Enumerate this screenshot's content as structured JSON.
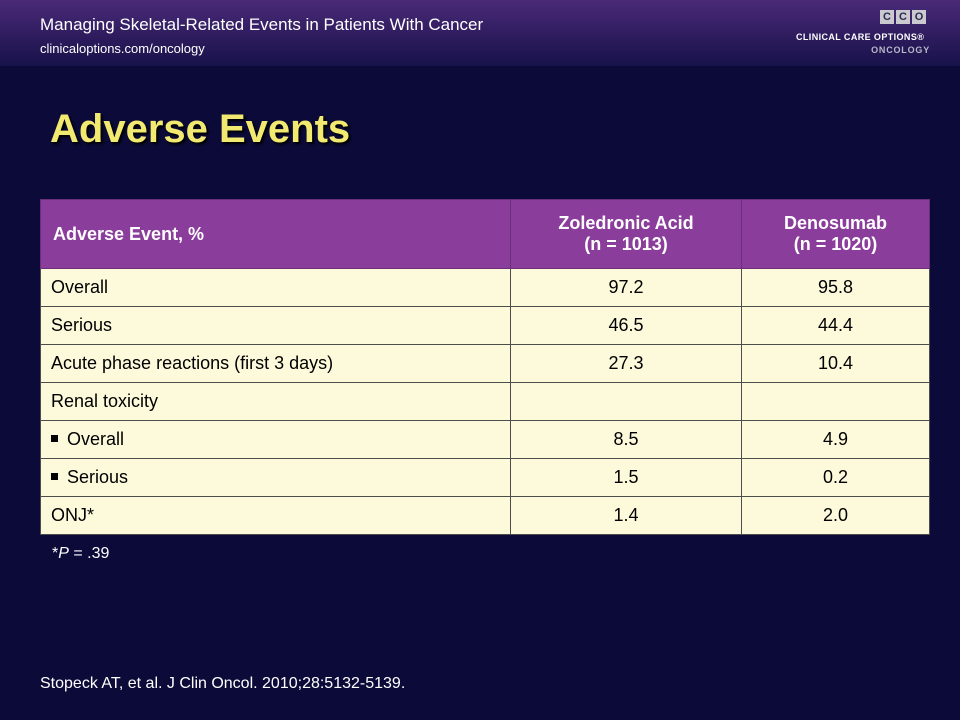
{
  "header": {
    "title": "Managing Skeletal-Related Events in Patients With Cancer",
    "url": "clinicaloptions.com/oncology"
  },
  "logo": {
    "letters": [
      "C",
      "C",
      "O"
    ],
    "line1": "CLINICAL CARE OPTIONS®",
    "line2": "ONCOLOGY"
  },
  "slide": {
    "title": "Adverse Events"
  },
  "table": {
    "columns": [
      {
        "line1": "Adverse Event, %",
        "line2": ""
      },
      {
        "line1": "Zoledronic Acid",
        "line2": "(n = 1013)"
      },
      {
        "line1": "Denosumab",
        "line2": "(n = 1020)"
      }
    ],
    "rows": [
      {
        "label": "Overall",
        "zoledronic": "97.2",
        "denosumab": "95.8"
      },
      {
        "label": "Serious",
        "zoledronic": "46.5",
        "denosumab": "44.4"
      },
      {
        "label": "Acute phase reactions (first 3 days)",
        "zoledronic": "27.3",
        "denosumab": "10.4"
      },
      {
        "label": "Renal toxicity",
        "zoledronic": "",
        "denosumab": ""
      },
      {
        "label": "Overall",
        "zoledronic": "8.5",
        "denosumab": "4.9"
      },
      {
        "label": "Serious",
        "zoledronic": "1.5",
        "denosumab": "0.2"
      },
      {
        "label": "ONJ*",
        "zoledronic": "1.4",
        "denosumab": "2.0"
      }
    ]
  },
  "footnote": {
    "prefix": "*",
    "p": "P",
    "rest": " = .39"
  },
  "reference": "Stopeck AT, et al. J Clin Oncol. 2010;28:5132-5139."
}
